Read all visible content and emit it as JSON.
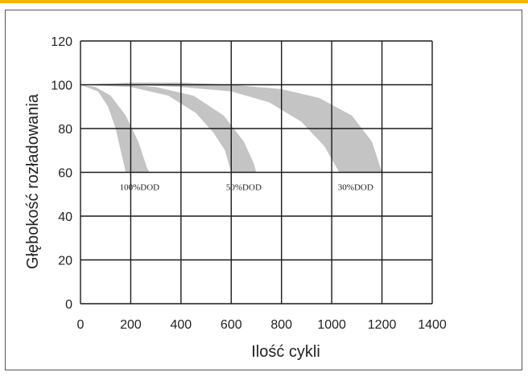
{
  "colors": {
    "accent_bar": "#f5b800",
    "band": "#c4c4c4",
    "grid": "#1a1a1a",
    "frame": "#555555",
    "text": "#222222"
  },
  "chart_data": {
    "type": "area",
    "title": "",
    "xlabel": "Ilość cykli",
    "ylabel": "Głębokość rozładowania",
    "xlim": [
      0,
      1400
    ],
    "ylim": [
      0,
      120
    ],
    "x_ticks": [
      0,
      200,
      400,
      600,
      800,
      1000,
      1200,
      1400
    ],
    "y_ticks": [
      0,
      20,
      40,
      60,
      80,
      100,
      120
    ],
    "grid": true,
    "legend": "none",
    "series": [
      {
        "name": "100%DOD",
        "upper": [
          [
            0,
            100
          ],
          [
            60,
            99
          ],
          [
            120,
            95
          ],
          [
            180,
            86
          ],
          [
            230,
            74
          ],
          [
            265,
            62
          ],
          [
            275,
            60
          ]
        ],
        "lower": [
          [
            0,
            100
          ],
          [
            70,
            97
          ],
          [
            110,
            90
          ],
          [
            140,
            80
          ],
          [
            160,
            70
          ],
          [
            180,
            60
          ]
        ]
      },
      {
        "name": "50%DOD",
        "upper": [
          [
            0,
            100
          ],
          [
            150,
            100.5
          ],
          [
            300,
            99
          ],
          [
            450,
            95
          ],
          [
            570,
            86
          ],
          [
            650,
            74
          ],
          [
            690,
            64
          ],
          [
            700,
            60
          ]
        ],
        "lower": [
          [
            0,
            100
          ],
          [
            200,
            99
          ],
          [
            350,
            95
          ],
          [
            460,
            87
          ],
          [
            530,
            78
          ],
          [
            575,
            70
          ],
          [
            600,
            60
          ]
        ]
      },
      {
        "name": "30%DOD",
        "upper": [
          [
            0,
            100
          ],
          [
            200,
            101
          ],
          [
            400,
            101
          ],
          [
            600,
            100
          ],
          [
            800,
            98
          ],
          [
            950,
            94
          ],
          [
            1080,
            86
          ],
          [
            1160,
            74
          ],
          [
            1200,
            60
          ]
        ],
        "lower": [
          [
            0,
            100
          ],
          [
            200,
            100
          ],
          [
            400,
            99
          ],
          [
            600,
            97
          ],
          [
            750,
            92
          ],
          [
            880,
            83
          ],
          [
            970,
            72
          ],
          [
            1030,
            60
          ]
        ]
      }
    ],
    "annotations": [
      {
        "text": "100%DOD",
        "x": 235,
        "y": 52
      },
      {
        "text": "50%DOD",
        "x": 650,
        "y": 52
      },
      {
        "text": "30%DOD",
        "x": 1095,
        "y": 52
      }
    ]
  }
}
